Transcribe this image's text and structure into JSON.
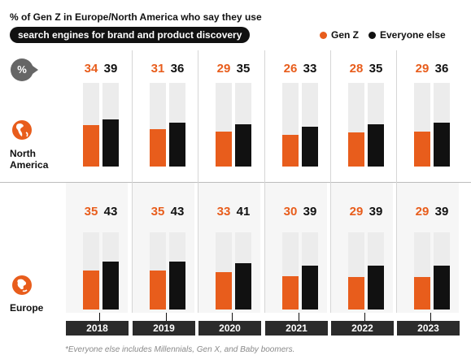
{
  "header": {
    "title": "% of Gen Z in Europe/North America who say they use",
    "title_highlight": "search engines for brand and product discovery"
  },
  "legend": {
    "genz": "Gen Z",
    "else": "Everyone else"
  },
  "badge": "%",
  "footnote": "*Everyone else includes Millennials, Gen X, and Baby boomers.",
  "colors": {
    "genz": "#e85d1c",
    "else": "#111111",
    "track": "#ececec"
  },
  "icons": {
    "north_america": "globe-americas-icon",
    "europe": "globe-europe-icon"
  },
  "chart_data": {
    "type": "bar",
    "x": [
      "2018",
      "2019",
      "2020",
      "2021",
      "2022",
      "2023"
    ],
    "ylim": [
      0,
      100
    ],
    "series_names": [
      "Gen Z",
      "Everyone else"
    ],
    "panels": [
      {
        "region": "North America",
        "region_lines": [
          "North",
          "America"
        ],
        "series": [
          {
            "name": "Gen Z",
            "values": [
              34,
              31,
              29,
              26,
              28,
              29
            ]
          },
          {
            "name": "Everyone else",
            "values": [
              39,
              36,
              35,
              33,
              35,
              36
            ]
          }
        ]
      },
      {
        "region": "Europe",
        "region_lines": [
          "Europe"
        ],
        "series": [
          {
            "name": "Gen Z",
            "values": [
              35,
              35,
              33,
              30,
              29,
              29
            ]
          },
          {
            "name": "Everyone else",
            "values": [
              43,
              43,
              41,
              39,
              39,
              39
            ]
          }
        ]
      }
    ]
  }
}
